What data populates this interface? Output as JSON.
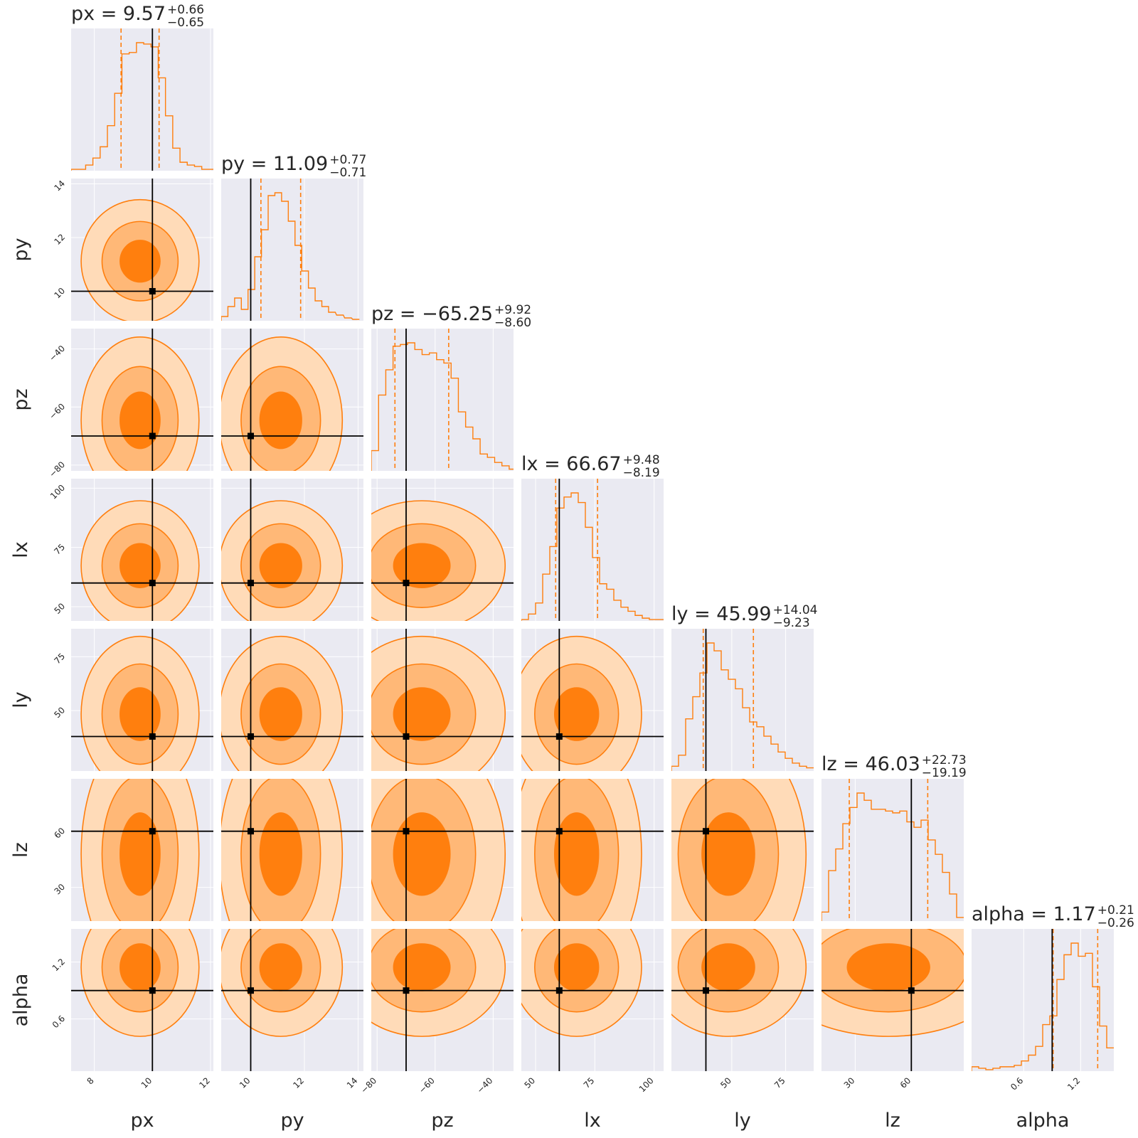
{
  "colors": {
    "panel_bg": "#eaeaf2",
    "grid": "#ffffff",
    "hist_line": "#ff7f0e",
    "level_3sigma": "#ffdbb8",
    "level_2sigma": "#ffb877",
    "level_1sigma": "#ff7f0e",
    "contour_line": "#ff7f0e",
    "truth_line": "#000000"
  },
  "chart_data": {
    "type": "corner",
    "parameters": [
      {
        "name": "px",
        "label": "px",
        "range": [
          7.2,
          12.1
        ],
        "ticks": [
          8,
          10,
          12
        ],
        "tick_labels": [
          "8",
          "10",
          "12"
        ],
        "truth": 10.0,
        "title": {
          "main": "px = 9.57",
          "plus": "+0.66",
          "minus": "−0.65"
        },
        "median": 9.57,
        "err_plus": 0.66,
        "err_minus": 0.65
      },
      {
        "name": "py",
        "label": "py",
        "range": [
          8.9,
          14.2
        ],
        "ticks": [
          10,
          12,
          14
        ],
        "tick_labels": [
          "10",
          "12",
          "14"
        ],
        "truth": 10.0,
        "title": {
          "main": "py = 11.09",
          "plus": "+0.77",
          "minus": "−0.71"
        },
        "median": 11.09,
        "err_plus": 0.77,
        "err_minus": 0.71
      },
      {
        "name": "pz",
        "label": "pz",
        "range": [
          -82,
          -33
        ],
        "ticks": [
          -80,
          -60,
          -40
        ],
        "tick_labels": [
          "−80",
          "−60",
          "−40"
        ],
        "truth": -70.0,
        "title": {
          "main": "pz = −65.25",
          "plus": "+9.92",
          "minus": "−8.60"
        },
        "median": -65.25,
        "err_plus": 9.92,
        "err_minus": 8.6
      },
      {
        "name": "lx",
        "label": "lx",
        "range": [
          44,
          104
        ],
        "ticks": [
          50,
          75,
          100
        ],
        "tick_labels": [
          "50",
          "75",
          "100"
        ],
        "truth": 60.0,
        "title": {
          "main": "lx = 66.67",
          "plus": "+9.48",
          "minus": "−8.19"
        },
        "median": 66.67,
        "err_plus": 9.48,
        "err_minus": 8.19
      },
      {
        "name": "ly",
        "label": "ly",
        "range": [
          22,
          88
        ],
        "ticks": [
          50,
          75
        ],
        "tick_labels": [
          "50",
          "75"
        ],
        "truth": 38.0,
        "title": {
          "main": "ly = 45.99",
          "plus": "+14.04",
          "minus": "−9.23"
        },
        "median": 45.99,
        "err_plus": 14.04,
        "err_minus": 9.23
      },
      {
        "name": "lz",
        "label": "lz",
        "range": [
          12,
          88
        ],
        "ticks": [
          30,
          60
        ],
        "tick_labels": [
          "30",
          "60"
        ],
        "truth": 60.0,
        "title": {
          "main": "lz = 46.03",
          "plus": "+22.73",
          "minus": "−19.19"
        },
        "median": 46.03,
        "err_plus": 22.73,
        "err_minus": 19.19
      },
      {
        "name": "alpha",
        "label": "alpha",
        "range": [
          0.05,
          1.55
        ],
        "ticks": [
          0.6,
          1.2
        ],
        "tick_labels": [
          "0.6",
          "1.2"
        ],
        "truth": 0.9,
        "title": {
          "main": "alpha = 1.17",
          "plus": "+0.21",
          "minus": "−0.26"
        },
        "median": 1.17,
        "err_plus": 0.21,
        "err_minus": 0.26
      }
    ],
    "histograms": [
      {
        "param": "px",
        "x": [
          7.2,
          7.45,
          7.7,
          7.95,
          8.2,
          8.45,
          8.7,
          8.95,
          9.2,
          9.45,
          9.7,
          9.95,
          10.2,
          10.45,
          10.7,
          10.95,
          11.2,
          11.45,
          11.7,
          11.95
        ],
        "counts": [
          1,
          1,
          4,
          9,
          17,
          32,
          55,
          83,
          84,
          91,
          90,
          88,
          66,
          39,
          16,
          6,
          4,
          3,
          1,
          1
        ]
      },
      {
        "param": "py",
        "x": [
          8.9,
          9.15,
          9.4,
          9.65,
          9.9,
          10.15,
          10.4,
          10.65,
          10.9,
          11.15,
          11.4,
          11.65,
          11.9,
          12.15,
          12.4,
          12.65,
          12.9,
          13.2,
          13.5,
          13.8
        ],
        "counts": [
          3,
          10,
          16,
          8,
          22,
          45,
          64,
          88,
          90,
          84,
          70,
          53,
          35,
          23,
          14,
          10,
          6,
          4,
          2,
          1
        ]
      },
      {
        "param": "pz",
        "x": [
          -82,
          -79.5,
          -77,
          -74.5,
          -72,
          -69.5,
          -67,
          -64.5,
          -62,
          -59.5,
          -57,
          -54.5,
          -52,
          -49.5,
          -47,
          -44.5,
          -42,
          -39.5,
          -37,
          -34.5
        ],
        "counts": [
          12,
          45,
          60,
          74,
          75,
          76,
          72,
          69,
          70,
          66,
          64,
          55,
          35,
          26,
          19,
          10,
          8,
          5,
          3,
          1
        ]
      },
      {
        "param": "lx",
        "x": [
          44,
          47,
          50,
          53,
          56,
          59,
          62,
          65,
          68,
          71,
          74,
          77,
          80,
          83,
          86,
          89,
          92,
          95,
          98,
          101
        ],
        "counts": [
          1,
          5,
          13,
          34,
          54,
          82,
          90,
          93,
          86,
          68,
          46,
          27,
          23,
          15,
          10,
          7,
          4,
          2,
          1,
          1
        ]
      },
      {
        "param": "ly",
        "x": [
          22,
          25.3,
          28.6,
          31.9,
          35.2,
          38.5,
          41.8,
          45.1,
          48.4,
          51.7,
          55,
          58.3,
          61.6,
          64.9,
          68.2,
          71.5,
          74.8,
          78.1,
          81.4,
          84.7
        ],
        "counts": [
          3,
          10,
          33,
          47,
          62,
          81,
          76,
          64,
          58,
          52,
          40,
          31,
          28,
          22,
          17,
          12,
          8,
          5,
          3,
          2
        ]
      },
      {
        "param": "lz",
        "x": [
          12,
          15.8,
          19.6,
          23.4,
          27.2,
          31,
          34.8,
          38.6,
          42.4,
          46.2,
          50,
          53.8,
          57.6,
          61.4,
          65.2,
          69,
          72.8,
          76.6,
          80.4,
          84.2
        ],
        "counts": [
          5,
          28,
          40,
          54,
          63,
          71,
          67,
          62,
          62,
          61,
          60,
          61,
          55,
          52,
          56,
          45,
          37,
          27,
          15,
          2
        ]
      },
      {
        "param": "alpha",
        "x": [
          0.05,
          0.125,
          0.2,
          0.275,
          0.35,
          0.425,
          0.5,
          0.575,
          0.65,
          0.725,
          0.8,
          0.875,
          0.95,
          1.025,
          1.1,
          1.175,
          1.25,
          1.325,
          1.4,
          1.475
        ],
        "counts": [
          3,
          2,
          1,
          2,
          3,
          3,
          4,
          7,
          11,
          17,
          32,
          38,
          63,
          80,
          88,
          79,
          81,
          58,
          31,
          16
        ]
      }
    ],
    "contour_levels": [
      "1-sigma",
      "2-sigma",
      "3-sigma"
    ],
    "credible_interval": "16th-84th percentile (dashed)",
    "truth_marker": "black cross-hair with square marker",
    "grid": true,
    "legend": "none"
  }
}
